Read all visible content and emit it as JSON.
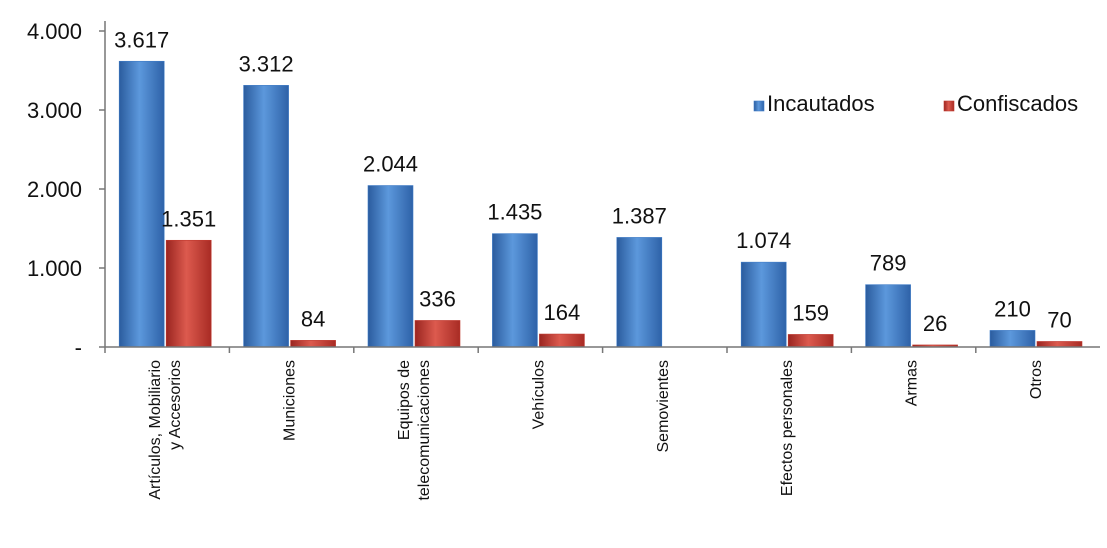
{
  "chart_data": {
    "type": "bar",
    "categories": [
      [
        "Artículos, Mobiliario",
        "y Accesorios"
      ],
      [
        "Municiones"
      ],
      [
        "Equipos de",
        "telecomunicaciones"
      ],
      [
        "Vehículos"
      ],
      [
        "Semovientes"
      ],
      [
        "Efectos personales"
      ],
      [
        "Armas"
      ],
      [
        "Otros"
      ]
    ],
    "series": [
      {
        "name": "Incautados",
        "color": "#3E7BC6",
        "values": [
          3617,
          3312,
          2044,
          1435,
          1387,
          1074,
          789,
          210
        ],
        "labels": [
          "3.617",
          "3.312",
          "2.044",
          "1.435",
          "1.387",
          "1.074",
          "789",
          "210"
        ]
      },
      {
        "name": "Confiscados",
        "color": "#C0392F",
        "values": [
          1351,
          84,
          336,
          164,
          0,
          159,
          26,
          70
        ],
        "labels": [
          "1.351",
          "84",
          "336",
          "164",
          "",
          "159",
          "26",
          "70"
        ]
      }
    ],
    "yticks": [
      {
        "value": 0,
        "label": "-"
      },
      {
        "value": 1000,
        "label": "1.000"
      },
      {
        "value": 2000,
        "label": "2.000"
      },
      {
        "value": 3000,
        "label": "3.000"
      },
      {
        "value": 4000,
        "label": "4.000"
      }
    ],
    "ylim": [
      0,
      4000
    ],
    "title": "",
    "xlabel": "",
    "ylabel": "",
    "grid": false,
    "legend_position": "top-right"
  }
}
